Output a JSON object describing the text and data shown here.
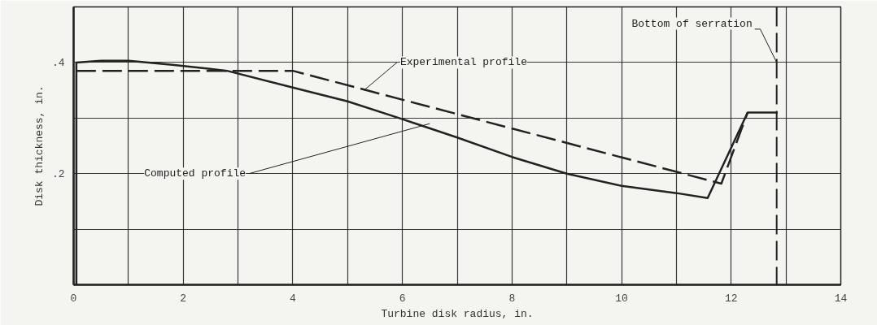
{
  "chart_data": {
    "type": "line",
    "xlabel": "Turbine disk radius, in.",
    "ylabel": "Disk thickness, in.",
    "xlim": [
      0,
      14
    ],
    "ylim": [
      0,
      0.5
    ],
    "xticks": [
      0,
      {
        "value": 1,
        "label": null
      },
      2,
      {
        "value": 3,
        "label": null
      },
      4,
      {
        "value": 5,
        "label": null
      },
      6,
      {
        "value": 7,
        "label": null
      },
      8,
      {
        "value": 9,
        "label": null
      },
      10,
      {
        "value": 11,
        "label": null
      },
      12,
      {
        "value": 13,
        "label": null
      },
      14
    ],
    "yticks": [
      {
        "value": 0,
        "label": null
      },
      {
        "value": 0.1,
        "label": null
      },
      {
        "value": 0.2,
        "label": ".2"
      },
      {
        "value": 0.3,
        "label": null
      },
      {
        "value": 0.4,
        "label": ".4"
      },
      {
        "value": 0.5,
        "label": null
      }
    ],
    "grid": true,
    "marker": "none",
    "series": [
      {
        "color": "#222222",
        "line_style": "solid",
        "x": [
          0.05,
          0.05,
          0.5,
          1.0,
          1.8,
          2.8,
          4.0,
          5.0,
          6.0,
          7.0,
          8.0,
          9.0,
          10.0,
          11.0,
          11.57,
          12.3,
          12.85
        ],
        "values": [
          0,
          0.4,
          0.403,
          0.403,
          0.396,
          0.385,
          0.355,
          0.33,
          0.298,
          0.265,
          0.23,
          0.2,
          0.178,
          0.165,
          0.156,
          0.31,
          0.31
        ]
      },
      {
        "color": "#222222",
        "line_style": "dashed",
        "x": [
          0.05,
          4.0,
          11.82,
          12.3
        ],
        "values": [
          0.385,
          0.385,
          0.182,
          0.31
        ]
      }
    ],
    "ref_lines": [
      {
        "axis": "x",
        "value": 12.83,
        "label": "Bottom of serration",
        "line_style": "dashed",
        "color": "#222222"
      }
    ],
    "annotations": [
      {
        "text": "Experimental profile",
        "x": 5.3,
        "y": 0.35
      },
      {
        "text": "Computed profile",
        "x": 6.5,
        "y": 0.29
      }
    ]
  }
}
